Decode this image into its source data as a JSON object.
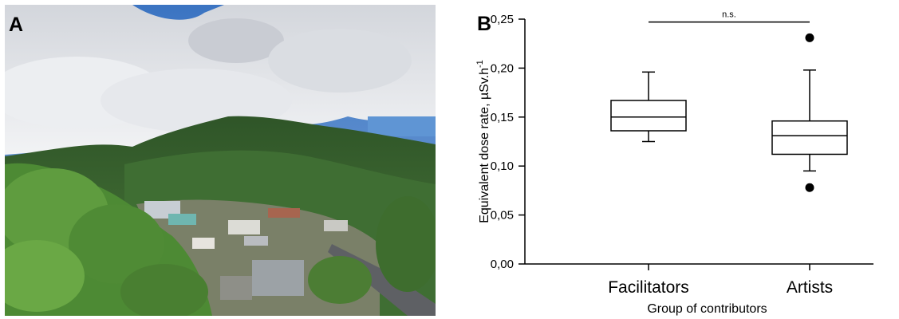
{
  "panels": {
    "a_label": "A",
    "b_label": "B"
  },
  "chart_data": {
    "type": "box",
    "categories": [
      "Facilitators",
      "Artists"
    ],
    "boxes": [
      {
        "category": "Facilitators",
        "whisker_low": 0.125,
        "q1": 0.136,
        "median": 0.15,
        "q3": 0.167,
        "whisker_high": 0.196,
        "outliers": []
      },
      {
        "category": "Artists",
        "whisker_low": 0.095,
        "q1": 0.112,
        "median": 0.131,
        "q3": 0.146,
        "whisker_high": 0.198,
        "outliers": [
          0.231,
          0.078
        ]
      }
    ],
    "ylim": [
      0,
      0.25
    ],
    "yticks": [
      0.0,
      0.05,
      0.1,
      0.15,
      0.2,
      0.25
    ],
    "ytick_labels": [
      "0,00",
      "0,05",
      "0,10",
      "0,15",
      "0,20",
      "0,25"
    ],
    "ylabel": "Equivalent dose rate, µSv.h",
    "ylabel_superscript": "-1",
    "xlabel": "Group of contributors",
    "significance": {
      "label": "n.s.",
      "between": [
        "Facilitators",
        "Artists"
      ],
      "y": 0.247
    },
    "grid": false,
    "legend": "none"
  },
  "photo": {
    "sky_color": "#3d78c6",
    "cloud_color": "#e4e6ea",
    "forest_color": "#3d6a36",
    "foliage_color": "#5e9a3c"
  }
}
